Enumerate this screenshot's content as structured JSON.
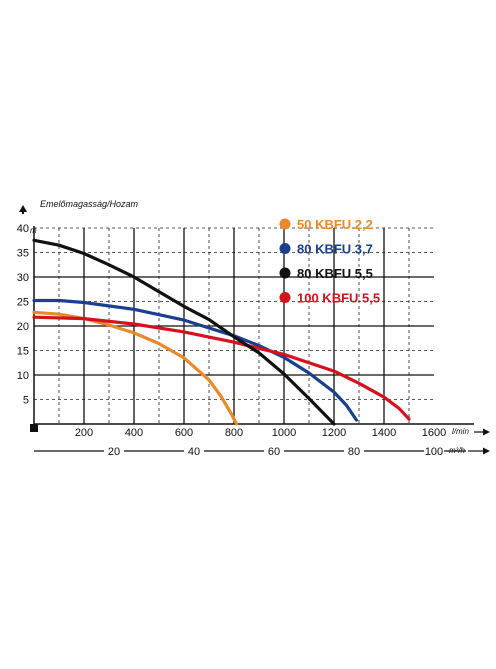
{
  "chart_data": {
    "type": "line",
    "ylabel": "Emelőmagasság/Hozam",
    "y_unit": "m",
    "x_unit": "l/min",
    "x2_unit": "m³/h",
    "ylim": [
      0,
      40
    ],
    "xlim": [
      0,
      1600
    ],
    "x2lim": [
      0,
      100
    ],
    "y_ticks": [
      5,
      10,
      15,
      20,
      25,
      30,
      35,
      40
    ],
    "x_ticks": [
      200,
      400,
      600,
      800,
      1000,
      1200,
      1400,
      1600
    ],
    "x2_ticks": [
      20,
      40,
      60,
      80,
      100
    ],
    "grid": true,
    "legend_position": "top-right",
    "series": [
      {
        "name": "50 KBFU 2,2",
        "color": "#e8892b",
        "x": [
          0,
          100,
          200,
          300,
          400,
          500,
          600,
          700,
          750,
          790,
          810
        ],
        "y": [
          22.8,
          22.4,
          21.5,
          20.2,
          18.6,
          16.4,
          13.5,
          9.0,
          5.5,
          2.0,
          0
        ]
      },
      {
        "name": "80 KBFU 3,7",
        "color": "#1b3f8f",
        "x": [
          0,
          100,
          200,
          400,
          600,
          800,
          900,
          1000,
          1100,
          1200,
          1250,
          1290
        ],
        "y": [
          25.2,
          25.2,
          24.8,
          23.4,
          21.2,
          18.0,
          16.0,
          13.6,
          10.4,
          6.5,
          3.8,
          0.8
        ]
      },
      {
        "name": "80 KBFU 5,5",
        "color": "#111111",
        "x": [
          0,
          100,
          200,
          300,
          400,
          500,
          600,
          700,
          800,
          900,
          1000,
          1100,
          1200
        ],
        "y": [
          37.5,
          36.5,
          34.8,
          32.5,
          30.0,
          27.0,
          24.0,
          21.3,
          17.8,
          14.5,
          10.2,
          5.2,
          0
        ]
      },
      {
        "name": "100 KBFU 5,5",
        "color": "#d4111c",
        "x": [
          0,
          200,
          400,
          600,
          800,
          1000,
          1200,
          1300,
          1400,
          1460,
          1500
        ],
        "y": [
          21.8,
          21.5,
          20.4,
          18.8,
          16.7,
          14.2,
          10.8,
          8.3,
          5.5,
          3.2,
          1.0
        ]
      }
    ]
  }
}
